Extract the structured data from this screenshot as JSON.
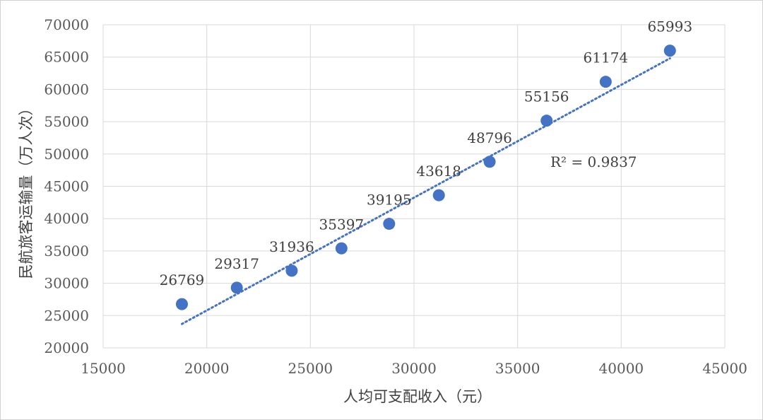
{
  "chart_data": {
    "type": "scatter",
    "xlabel": "人均可支配收入（元）",
    "ylabel": "民航旅客运输量（万人次）",
    "xlim": [
      15000,
      45000
    ],
    "ylim": [
      20000,
      70000
    ],
    "x_ticks": [
      15000,
      20000,
      25000,
      30000,
      35000,
      40000,
      45000
    ],
    "y_ticks": [
      20000,
      25000,
      30000,
      35000,
      40000,
      45000,
      50000,
      55000,
      60000,
      65000,
      70000
    ],
    "grid": true,
    "series": [
      {
        "color": "#4472c4",
        "points": [
          {
            "x": 18800,
            "y": 26769,
            "label": "26769"
          },
          {
            "x": 21450,
            "y": 29317,
            "label": "29317"
          },
          {
            "x": 24100,
            "y": 31936,
            "label": "31936"
          },
          {
            "x": 26500,
            "y": 35397,
            "label": "35397"
          },
          {
            "x": 28800,
            "y": 39195,
            "label": "39195"
          },
          {
            "x": 31200,
            "y": 43618,
            "label": "43618"
          },
          {
            "x": 33650,
            "y": 48796,
            "label": "48796"
          },
          {
            "x": 36400,
            "y": 55156,
            "label": "55156"
          },
          {
            "x": 39250,
            "y": 61174,
            "label": "61174"
          },
          {
            "x": 42350,
            "y": 65993,
            "label": "65993"
          }
        ]
      }
    ],
    "trendline": {
      "type": "linear",
      "style": "dotted",
      "start": {
        "x": 18800,
        "y": 23700
      },
      "end": {
        "x": 42350,
        "y": 64800
      },
      "r2_text": "R² = 0.9837"
    }
  }
}
